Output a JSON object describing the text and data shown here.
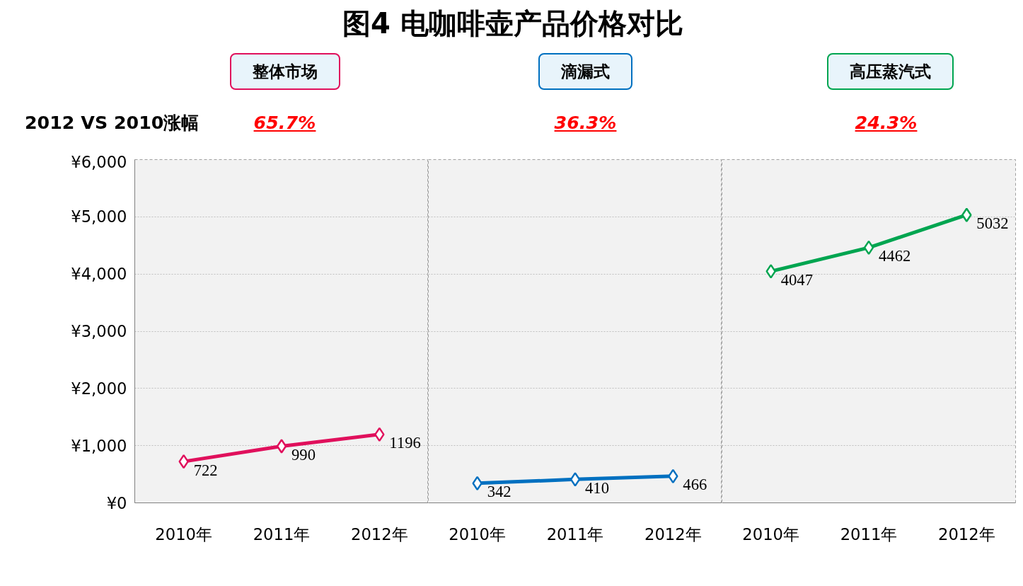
{
  "chart_data": [
    {
      "type": "line",
      "title": "图4 电咖啡壶产品价格对比",
      "annotations": [
        "2012 VS 2010涨幅",
        "65.7%"
      ],
      "categories": [
        "2010年",
        "2011年",
        "2012年"
      ],
      "ylim": [
        0,
        6000
      ],
      "yticks": [
        {
          "value": 0,
          "label": "¥0"
        },
        {
          "value": 1000,
          "label": "¥1,000"
        },
        {
          "value": 2000,
          "label": "¥2,000"
        },
        {
          "value": 3000,
          "label": "¥3,000"
        },
        {
          "value": 4000,
          "label": "¥4,000"
        },
        {
          "value": 5000,
          "label": "¥5,000"
        },
        {
          "value": 6000,
          "label": "¥6,000"
        }
      ],
      "grid": "y",
      "marker": "diamond",
      "data_labels": true,
      "series": [
        {
          "name": "整体市场",
          "color": "#e0105c",
          "values": [
            722,
            990,
            1196
          ]
        }
      ]
    },
    {
      "type": "line",
      "annotations": [
        "36.3%"
      ],
      "categories": [
        "2010年",
        "2011年",
        "2012年"
      ],
      "ylim": [
        0,
        6000
      ],
      "yticks": [
        0,
        1000,
        2000,
        3000,
        4000,
        5000,
        6000
      ],
      "tick_labels": "x",
      "grid": "y",
      "marker": "diamond",
      "data_labels": true,
      "series": [
        {
          "name": "滴漏式",
          "color": "#0070c0",
          "values": [
            342,
            410,
            466
          ]
        }
      ]
    },
    {
      "type": "line",
      "annotations": [
        "24.3%"
      ],
      "categories": [
        "2010年",
        "2011年",
        "2012年"
      ],
      "ylim": [
        0,
        6000
      ],
      "yticks": [
        0,
        1000,
        2000,
        3000,
        4000,
        5000,
        6000
      ],
      "tick_labels": "x",
      "grid": "y",
      "marker": "diamond",
      "data_labels": true,
      "series": [
        {
          "name": "高压蒸汽式",
          "color": "#00a550",
          "values": [
            4047,
            4462,
            5032
          ]
        }
      ]
    }
  ]
}
